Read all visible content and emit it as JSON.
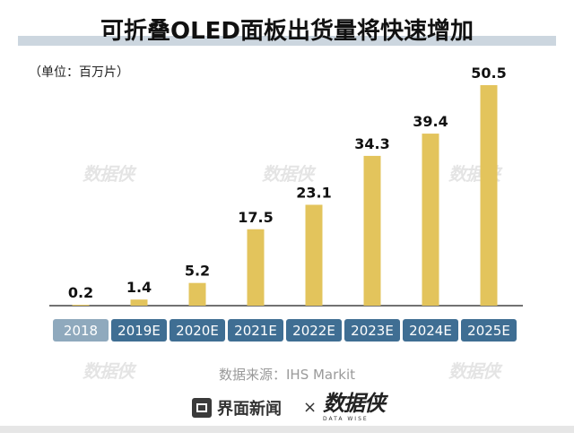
{
  "title": "可折叠OLED面板出货量将快速增加",
  "unit_label": "（单位：百万片）",
  "source": "数据来源：IHS Markit",
  "footer": {
    "jiemian_brand": "界面新闻",
    "times_sign": "×",
    "shujuxia_brand": "数据侠",
    "shujuxia_sub": "DATA WISE"
  },
  "watermark_text": "数据侠",
  "colors": {
    "bar": "#e3c45c",
    "label_box_actual": "#8fa9bd",
    "label_box_forecast": "#3f6e93",
    "axis": "#444444",
    "title_band": "#ccd6df"
  },
  "chart_data": {
    "type": "bar",
    "title": "可折叠OLED面板出货量将快速增加",
    "ylabel": "（单位：百万片）",
    "xlabel": "",
    "categories": [
      "2018",
      "2019E",
      "2020E",
      "2021E",
      "2022E",
      "2023E",
      "2024E",
      "2025E"
    ],
    "values": [
      0.2,
      1.4,
      5.2,
      17.5,
      23.1,
      34.3,
      39.4,
      50.5
    ],
    "value_labels": [
      "0.2",
      "1.4",
      "5.2",
      "17.5",
      "23.1",
      "34.3",
      "39.4",
      "50.5"
    ],
    "ylim": [
      0,
      50.5
    ],
    "grid": false,
    "legend": "none"
  }
}
